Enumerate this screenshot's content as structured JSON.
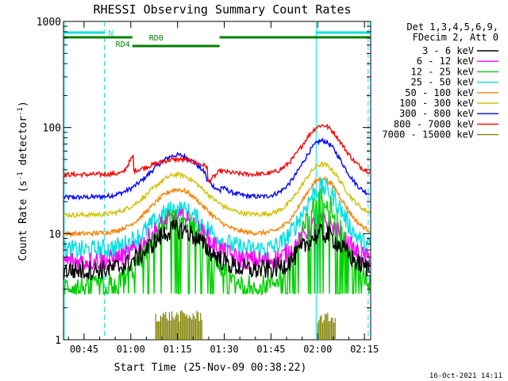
{
  "chart_data": {
    "type": "line",
    "title": "RHESSI Observing Summary Count Rates",
    "xlabel": "Start Time (25-Nov-09 00:38:22)",
    "ylabel_parts": [
      "Count Rate (s",
      "-1",
      " detector",
      "-1",
      ")"
    ],
    "y_scale": "log",
    "ylim": [
      1,
      1000
    ],
    "xlim_minutes": [
      38.4,
      137.0
    ],
    "x_ticks": [
      {
        "minute": 45,
        "label": "00:45"
      },
      {
        "minute": 60,
        "label": "01:00"
      },
      {
        "minute": 75,
        "label": "01:15"
      },
      {
        "minute": 90,
        "label": "01:30"
      },
      {
        "minute": 105,
        "label": "01:45"
      },
      {
        "minute": 120,
        "label": "02:00"
      },
      {
        "minute": 135,
        "label": "02:15"
      }
    ],
    "y_ticks": [
      {
        "value": 1,
        "label": "1"
      },
      {
        "value": 10,
        "label": "10"
      },
      {
        "value": 100,
        "label": "100"
      },
      {
        "value": 1000,
        "label": "1000"
      }
    ],
    "legend_header": [
      "Det 1,3,4,5,6,9,",
      "FDecim 2, Att 0"
    ],
    "legend_placement": "right",
    "series": [
      {
        "name": "3 - 6 keV",
        "color": "#000000",
        "baseline": 4.5,
        "peak1": 11,
        "peak2": 10
      },
      {
        "name": "6 - 12 keV",
        "color": "#ff00ff",
        "baseline": 5.5,
        "peak1": 14,
        "peak2": 13
      },
      {
        "name": "12 - 25 keV",
        "color": "#00d000",
        "baseline": 3.2,
        "peak1": 15,
        "peak2": 22
      },
      {
        "name": "25 - 50 keV",
        "color": "#00e0e0",
        "baseline": 7,
        "peak1": 17,
        "peak2": 27
      },
      {
        "name": "50 - 100 keV",
        "color": "#ff8000",
        "baseline": 10,
        "peak1": 26,
        "peak2": 33
      },
      {
        "name": "100 - 300 keV",
        "color": "#d0c000",
        "baseline": 15,
        "peak1": 36,
        "peak2": 45
      },
      {
        "name": "300 - 800 keV",
        "color": "#0000ff",
        "baseline": 22,
        "peak1": 55,
        "peak2": 75
      },
      {
        "name": "800 - 7000 keV",
        "color": "#ff0000",
        "baseline": 36,
        "peak1": 50,
        "peak2": 105
      },
      {
        "name": "7000 - 15000 keV",
        "color": "#808000",
        "baseline": 1.3,
        "peak1": 1.9,
        "peak2": 1.8
      }
    ],
    "bursts": [
      {
        "name": "7000 - 15000 keV",
        "from_minute": 68,
        "to_minute": 83,
        "level": 1.9
      },
      {
        "name": "7000 - 15000 keV",
        "from_minute": 120,
        "to_minute": 126,
        "level": 1.8
      }
    ],
    "states": [
      {
        "label": "N",
        "color": "#00e0e0",
        "row": 1,
        "segments": [
          [
            38.4,
            51.5
          ],
          [
            119.5,
            137.0
          ]
        ]
      },
      {
        "label": "RD0",
        "color": "#008000",
        "row": 2,
        "segments": [
          [
            38.4,
            60.5
          ],
          [
            88.5,
            137.0
          ]
        ]
      },
      {
        "label": "RD4",
        "color": "#008000",
        "row": 3,
        "segments": [
          [
            60.5,
            88.5
          ]
        ]
      }
    ],
    "vertical_markers": [
      {
        "minute": 38.6,
        "style": "solid"
      },
      {
        "minute": 51.5,
        "style": "dashed"
      },
      {
        "minute": 119.5,
        "style": "solid"
      },
      {
        "minute": 136.2,
        "style": "dashed"
      }
    ],
    "footer_date": "16-Oct-2021 14:11"
  }
}
